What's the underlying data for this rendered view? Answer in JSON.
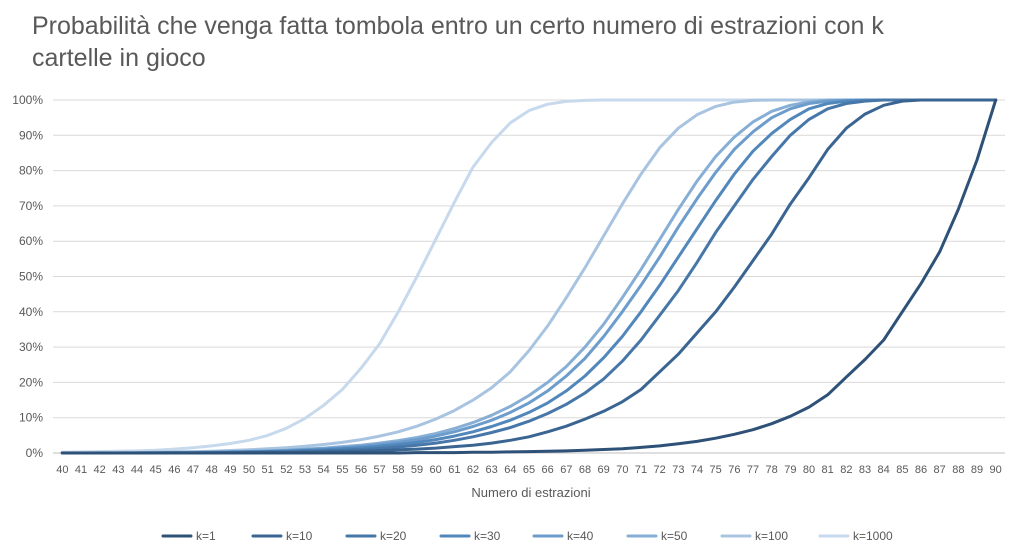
{
  "chart_data": {
    "type": "line",
    "title": "Probabilità che venga fatta tombola entro un certo numero di estrazioni con k cartelle in gioco",
    "xlabel": "Numero di estrazioni",
    "ylabel": "",
    "x": [
      40,
      41,
      42,
      43,
      44,
      45,
      46,
      47,
      48,
      49,
      50,
      51,
      52,
      53,
      54,
      55,
      56,
      57,
      58,
      59,
      60,
      61,
      62,
      63,
      64,
      65,
      66,
      67,
      68,
      69,
      70,
      71,
      72,
      73,
      74,
      75,
      76,
      77,
      78,
      79,
      80,
      81,
      82,
      83,
      84,
      85,
      86,
      87,
      88,
      89,
      90
    ],
    "ylim": [
      0,
      1
    ],
    "y_ticks": [
      "0%",
      "10%",
      "20%",
      "30%",
      "40%",
      "50%",
      "60%",
      "70%",
      "80%",
      "90%",
      "100%"
    ],
    "grid": true,
    "legend_position": "bottom",
    "series": [
      {
        "name": "k=1",
        "color": "#2e5177",
        "values": [
          0,
          0,
          0,
          0,
          0,
          0,
          0,
          0,
          0,
          0,
          0,
          0,
          0,
          0,
          0,
          0,
          0,
          0,
          0,
          0.001,
          0.001,
          0.001,
          0.002,
          0.002,
          0.003,
          0.004,
          0.005,
          0.006,
          0.008,
          0.01,
          0.012,
          0.016,
          0.02,
          0.026,
          0.033,
          0.042,
          0.053,
          0.066,
          0.083,
          0.104,
          0.13,
          0.165,
          0.215,
          0.265,
          0.32,
          0.4,
          0.48,
          0.57,
          0.69,
          0.83,
          1.0
        ]
      },
      {
        "name": "k=10",
        "color": "#3a6592",
        "values": [
          0,
          0,
          0,
          0,
          0,
          0,
          0,
          0,
          0,
          0,
          0.001,
          0.001,
          0.001,
          0.002,
          0.003,
          0.004,
          0.005,
          0.007,
          0.009,
          0.011,
          0.014,
          0.018,
          0.022,
          0.028,
          0.036,
          0.046,
          0.06,
          0.076,
          0.096,
          0.118,
          0.145,
          0.18,
          0.23,
          0.28,
          0.34,
          0.4,
          0.47,
          0.545,
          0.62,
          0.705,
          0.78,
          0.86,
          0.92,
          0.96,
          0.985,
          0.997,
          1.0,
          1.0,
          1.0,
          1.0,
          1.0
        ]
      },
      {
        "name": "k=20",
        "color": "#4677a8",
        "values": [
          0,
          0,
          0,
          0,
          0,
          0,
          0,
          0,
          0.001,
          0.001,
          0.002,
          0.003,
          0.004,
          0.005,
          0.006,
          0.008,
          0.01,
          0.013,
          0.017,
          0.022,
          0.028,
          0.036,
          0.046,
          0.058,
          0.072,
          0.09,
          0.112,
          0.138,
          0.17,
          0.21,
          0.26,
          0.32,
          0.39,
          0.46,
          0.54,
          0.625,
          0.7,
          0.775,
          0.84,
          0.9,
          0.945,
          0.975,
          0.99,
          0.997,
          1.0,
          1.0,
          1.0,
          1.0,
          1.0,
          1.0,
          1.0
        ]
      },
      {
        "name": "k=30",
        "color": "#5187bb",
        "values": [
          0,
          0,
          0,
          0,
          0,
          0,
          0.001,
          0.001,
          0.001,
          0.002,
          0.003,
          0.004,
          0.005,
          0.007,
          0.009,
          0.012,
          0.015,
          0.019,
          0.024,
          0.03,
          0.038,
          0.048,
          0.06,
          0.075,
          0.093,
          0.115,
          0.142,
          0.176,
          0.218,
          0.27,
          0.33,
          0.4,
          0.475,
          0.555,
          0.635,
          0.715,
          0.79,
          0.855,
          0.905,
          0.945,
          0.975,
          0.99,
          0.997,
          1.0,
          1.0,
          1.0,
          1.0,
          1.0,
          1.0,
          1.0,
          1.0
        ]
      },
      {
        "name": "k=40",
        "color": "#6b9ccc",
        "values": [
          0,
          0,
          0,
          0,
          0,
          0.001,
          0.001,
          0.001,
          0.002,
          0.003,
          0.004,
          0.005,
          0.007,
          0.009,
          0.012,
          0.015,
          0.019,
          0.024,
          0.03,
          0.038,
          0.048,
          0.06,
          0.075,
          0.093,
          0.115,
          0.142,
          0.176,
          0.218,
          0.268,
          0.33,
          0.4,
          0.475,
          0.555,
          0.64,
          0.72,
          0.795,
          0.86,
          0.91,
          0.95,
          0.975,
          0.99,
          0.997,
          1.0,
          1.0,
          1.0,
          1.0,
          1.0,
          1.0,
          1.0,
          1.0,
          1.0
        ]
      },
      {
        "name": "k=50",
        "color": "#87afd6",
        "values": [
          0,
          0,
          0,
          0,
          0.001,
          0.001,
          0.001,
          0.002,
          0.003,
          0.004,
          0.005,
          0.006,
          0.008,
          0.011,
          0.014,
          0.018,
          0.022,
          0.028,
          0.035,
          0.044,
          0.055,
          0.069,
          0.086,
          0.107,
          0.132,
          0.163,
          0.2,
          0.245,
          0.3,
          0.365,
          0.44,
          0.52,
          0.605,
          0.69,
          0.77,
          0.84,
          0.895,
          0.938,
          0.968,
          0.985,
          0.995,
          1.0,
          1.0,
          1.0,
          1.0,
          1.0,
          1.0,
          1.0,
          1.0,
          1.0,
          1.0
        ]
      },
      {
        "name": "k=100",
        "color": "#a9c4e1",
        "values": [
          0,
          0,
          0.001,
          0.001,
          0.001,
          0.002,
          0.003,
          0.004,
          0.005,
          0.007,
          0.009,
          0.012,
          0.015,
          0.019,
          0.024,
          0.03,
          0.038,
          0.048,
          0.06,
          0.076,
          0.096,
          0.12,
          0.15,
          0.185,
          0.23,
          0.29,
          0.36,
          0.44,
          0.525,
          0.615,
          0.705,
          0.79,
          0.865,
          0.92,
          0.958,
          0.982,
          0.994,
          0.999,
          1.0,
          1.0,
          1.0,
          1.0,
          1.0,
          1.0,
          1.0,
          1.0,
          1.0,
          1.0,
          1.0,
          1.0,
          1.0
        ]
      },
      {
        "name": "k=1000",
        "color": "#c7d9ec",
        "values": [
          0.002,
          0.003,
          0.004,
          0.005,
          0.006,
          0.008,
          0.011,
          0.015,
          0.02,
          0.027,
          0.036,
          0.05,
          0.07,
          0.098,
          0.135,
          0.18,
          0.24,
          0.31,
          0.4,
          0.5,
          0.605,
          0.71,
          0.81,
          0.88,
          0.935,
          0.97,
          0.988,
          0.996,
          0.999,
          1.0,
          1.0,
          1.0,
          1.0,
          1.0,
          1.0,
          1.0,
          1.0,
          1.0,
          1.0,
          1.0,
          1.0,
          1.0,
          1.0,
          1.0,
          1.0,
          1.0,
          1.0,
          1.0,
          1.0,
          1.0,
          1.0
        ]
      }
    ]
  }
}
